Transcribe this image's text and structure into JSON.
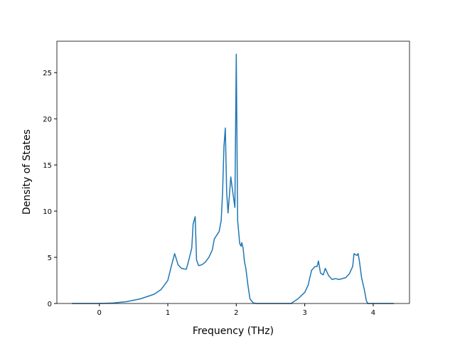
{
  "chart_data": {
    "type": "line",
    "x_label": "Frequency (THz)",
    "y_label": "Density of States",
    "x": [
      -0.4,
      0,
      0.2,
      0.4,
      0.6,
      0.8,
      0.9,
      1.0,
      1.05,
      1.1,
      1.15,
      1.2,
      1.27,
      1.3,
      1.35,
      1.37,
      1.4,
      1.42,
      1.45,
      1.5,
      1.55,
      1.6,
      1.65,
      1.68,
      1.75,
      1.78,
      1.8,
      1.82,
      1.84,
      1.86,
      1.88,
      1.92,
      1.95,
      1.98,
      2.0,
      2.02,
      2.05,
      2.07,
      2.08,
      2.1,
      2.12,
      2.14,
      2.17,
      2.2,
      2.25,
      2.3,
      2.8,
      2.9,
      3.0,
      3.05,
      3.1,
      3.15,
      3.18,
      3.2,
      3.23,
      3.27,
      3.3,
      3.35,
      3.4,
      3.45,
      3.5,
      3.6,
      3.65,
      3.7,
      3.72,
      3.76,
      3.78,
      3.8,
      3.83,
      3.87,
      3.9,
      3.92,
      4.3
    ],
    "series": [
      {
        "name": "DOS",
        "color": "#1f77b4",
        "values": [
          0,
          0,
          0.05,
          0.2,
          0.5,
          1.0,
          1.5,
          2.5,
          4,
          5.4,
          4.2,
          3.8,
          3.7,
          4.5,
          6,
          8.6,
          9.4,
          4.7,
          4.1,
          4.2,
          4.5,
          5,
          5.8,
          7,
          7.8,
          9,
          12,
          17,
          19,
          12,
          9.8,
          13.7,
          12,
          10.4,
          27,
          9,
          6.5,
          6.2,
          6.6,
          6,
          4.5,
          3.8,
          2,
          0.5,
          0.05,
          0,
          0,
          0.5,
          1.2,
          2,
          3.6,
          4,
          4,
          4.6,
          3.3,
          3.1,
          3.8,
          3,
          2.6,
          2.7,
          2.6,
          2.8,
          3.2,
          4,
          5.4,
          5.2,
          5.4,
          4.5,
          2.8,
          1.5,
          0.3,
          0,
          0
        ]
      }
    ],
    "xlim": [
      -0.62,
      4.53
    ],
    "ylim": [
      0,
      28.4
    ],
    "xticks": [
      0,
      1,
      2,
      3,
      4
    ],
    "yticks": [
      0,
      5,
      10,
      15,
      20,
      25
    ]
  }
}
